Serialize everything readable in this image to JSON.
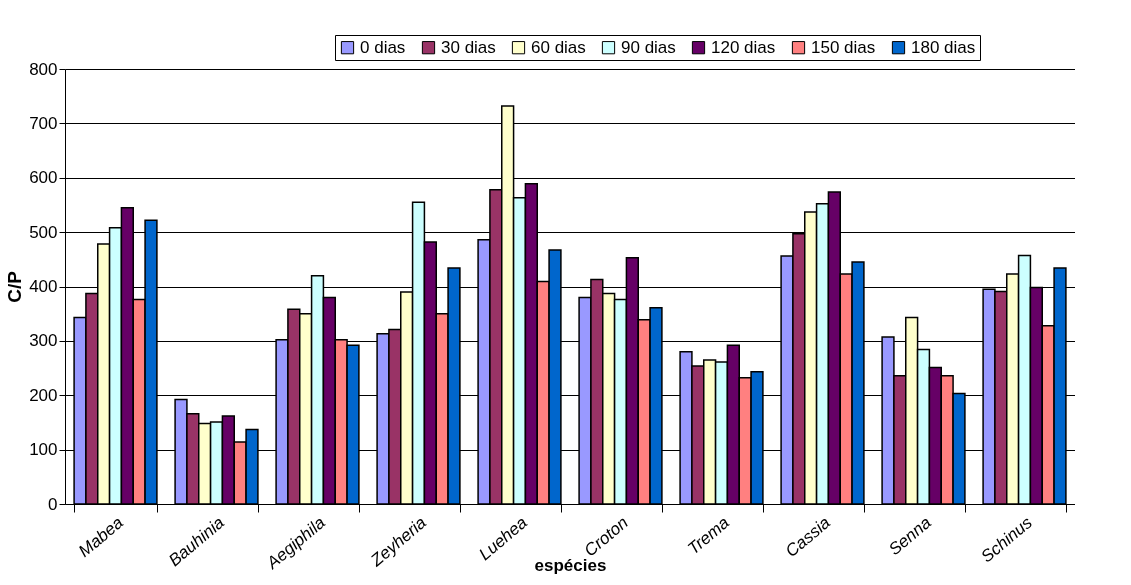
{
  "chart_data": {
    "type": "bar",
    "xlabel": "espécies",
    "ylabel": "C/P",
    "categories": [
      "Mabea",
      "Bauhinia",
      "Aegiphila",
      "Zeyheria",
      "Luehea",
      "Croton",
      "Trema",
      "Cassia",
      "Senna",
      "Schinus"
    ],
    "series": [
      {
        "name": "0 dias",
        "color": "#9999ff",
        "values": [
          343,
          192,
          302,
          313,
          486,
          380,
          280,
          456,
          307,
          395
        ]
      },
      {
        "name": "30 dias",
        "color": "#993366",
        "values": [
          387,
          166,
          358,
          321,
          578,
          413,
          254,
          497,
          236,
          391
        ]
      },
      {
        "name": "60 dias",
        "color": "#ffffcc",
        "values": [
          478,
          148,
          350,
          390,
          732,
          387,
          265,
          537,
          343,
          423
        ]
      },
      {
        "name": "90 dias",
        "color": "#ccffff",
        "values": [
          508,
          151,
          420,
          555,
          563,
          376,
          261,
          552,
          284,
          457
        ]
      },
      {
        "name": "120 dias",
        "color": "#660066",
        "values": [
          545,
          162,
          380,
          482,
          589,
          453,
          292,
          574,
          251,
          398
        ]
      },
      {
        "name": "150 dias",
        "color": "#ff8080",
        "values": [
          376,
          114,
          302,
          350,
          409,
          339,
          232,
          423,
          236,
          328
        ]
      },
      {
        "name": "180 dias",
        "color": "#0066cc",
        "values": [
          522,
          137,
          292,
          434,
          467,
          361,
          243,
          445,
          203,
          434
        ]
      }
    ],
    "ylim": [
      0,
      800
    ],
    "yticks": [
      0,
      100,
      200,
      300,
      400,
      500,
      600,
      700,
      800
    ],
    "grid": "y",
    "legend": "top"
  }
}
